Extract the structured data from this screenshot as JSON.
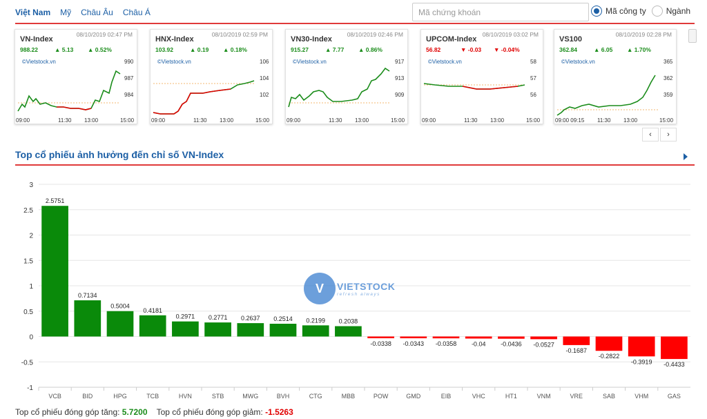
{
  "nav": {
    "tabs": [
      {
        "label": "Việt Nam",
        "active": true
      },
      {
        "label": "Mỹ",
        "active": false
      },
      {
        "label": "Châu Âu",
        "active": false
      },
      {
        "label": "Châu Á",
        "active": false
      }
    ],
    "search_placeholder": "Mã chứng khoán",
    "radio_company": "Mã công ty",
    "radio_industry": "Ngành"
  },
  "colors": {
    "up": "#1a8c1a",
    "down": "#e00000",
    "accent": "#1c5fa5",
    "rule": "#e03a3a"
  },
  "cards": [
    {
      "name": "VN-Index",
      "time": "08/10/2019 02:47 PM",
      "value": "988.22",
      "change": "▲ 5.13",
      "pct": "▲ 0.52%",
      "dir": "up",
      "brand": "©Vietstock.vn",
      "yticks": [
        "990",
        "987",
        "984"
      ],
      "xticks": [
        "09:00",
        "11:30",
        "13:00",
        "15:00"
      ]
    },
    {
      "name": "HNX-Index",
      "time": "08/10/2019 02:59 PM",
      "value": "103.92",
      "change": "▲ 0.19",
      "pct": "▲ 0.18%",
      "dir": "up",
      "brand": "©Vietstock.vn",
      "yticks": [
        "106",
        "104",
        "102"
      ],
      "xticks": [
        "09:00",
        "11:30",
        "13:00",
        "15:00"
      ]
    },
    {
      "name": "VN30-Index",
      "time": "08/10/2019 02:46 PM",
      "value": "915.27",
      "change": "▲ 7.77",
      "pct": "▲ 0.86%",
      "dir": "up",
      "brand": "©Vietstock.vn",
      "yticks": [
        "917",
        "913",
        "909"
      ],
      "xticks": [
        "09:00",
        "11:30",
        "13:00",
        "15:00"
      ]
    },
    {
      "name": "UPCOM-Index",
      "time": "08/10/2019 03:02 PM",
      "value": "56.82",
      "change": "▼ -0.03",
      "pct": "▼ -0.04%",
      "dir": "down",
      "brand": "©Vietstock.vn",
      "yticks": [
        "58",
        "57",
        "56"
      ],
      "xticks": [
        "09:00",
        "11:30",
        "13:00",
        "15:00"
      ]
    },
    {
      "name": "VS100",
      "time": "08/10/2019 02:28 PM",
      "value": "362.84",
      "change": "▲ 6.05",
      "pct": "▲ 1.70%",
      "dir": "up",
      "brand": "©Vietstock.vn",
      "yticks": [
        "365",
        "362",
        "359"
      ],
      "xticks": [
        "09:00 09:15",
        "11:30",
        "13:00",
        "15:00"
      ]
    }
  ],
  "pager": {
    "prev": "‹",
    "next": "›"
  },
  "section": {
    "title": "Top cổ phiếu ảnh hưởng đến chỉ số VN-Index"
  },
  "watermark": {
    "title": "VIETSTOCK",
    "subtitle": "refresh always"
  },
  "chart_data": {
    "type": "bar",
    "title": "",
    "xlabel": "",
    "ylabel": "",
    "ylim": [
      -1,
      3
    ],
    "yticks": [
      3,
      2.5,
      2,
      1.5,
      1,
      0.5,
      0,
      -0.5,
      -1
    ],
    "ytick_labels": [
      "3",
      "2.5",
      "2",
      "1.5",
      "1",
      "0.5",
      "0",
      "-0.5",
      "-1"
    ],
    "grid": true,
    "categories": [
      "VCB",
      "BID",
      "HPG",
      "TCB",
      "HVN",
      "STB",
      "MWG",
      "BVH",
      "CTG",
      "MBB",
      "POW",
      "GMD",
      "EIB",
      "VHC",
      "HT1",
      "VNM",
      "VRE",
      "SAB",
      "VHM",
      "GAS"
    ],
    "values": [
      2.5751,
      0.7134,
      0.5004,
      0.4181,
      0.2971,
      0.2771,
      0.2637,
      0.2514,
      0.2199,
      0.2038,
      -0.0338,
      -0.0343,
      -0.0358,
      -0.04,
      -0.0436,
      -0.0527,
      -0.1687,
      -0.2822,
      -0.3919,
      -0.4433
    ],
    "value_labels": [
      "2.5751",
      "0.7134",
      "0.5004",
      "0.4181",
      "0.2971",
      "0.2771",
      "0.2637",
      "0.2514",
      "0.2199",
      "0.2038",
      "-0.0338",
      "-0.0343",
      "-0.0358",
      "-0.04",
      "-0.0436",
      "-0.0527",
      "-0.1687",
      "-0.2822",
      "-0.3919",
      "-0.4433"
    ]
  },
  "footer": {
    "up_label": "Top cổ phiếu đóng góp tăng: ",
    "up_value": "5.7200",
    "down_label": "Top cổ phiếu đóng góp giảm: ",
    "down_value": "-1.5263"
  }
}
